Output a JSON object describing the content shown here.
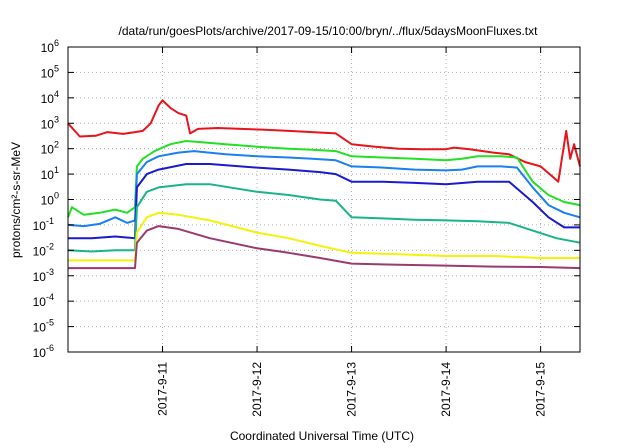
{
  "chart_data": {
    "type": "line",
    "title": "/data/run/goesPlots/archive/2017-09-15/10:00/bryn/../flux/5daysMoonFluxes.txt",
    "xlabel": "Coordinated Universal Time (UTC)",
    "ylabel": "protons/cm²-s-sr-MeV",
    "y_scale": "log",
    "ylim": [
      1e-06,
      1000000.0
    ],
    "y_ticks": [
      {
        "value": 1e-06,
        "label": "10",
        "exp": "-6"
      },
      {
        "value": 1e-05,
        "label": "10",
        "exp": "-5"
      },
      {
        "value": 0.0001,
        "label": "10",
        "exp": "-4"
      },
      {
        "value": 0.001,
        "label": "10",
        "exp": "-3"
      },
      {
        "value": 0.01,
        "label": "10",
        "exp": "-2"
      },
      {
        "value": 0.1,
        "label": "10",
        "exp": "-1"
      },
      {
        "value": 1,
        "label": "10",
        "exp": "0"
      },
      {
        "value": 10,
        "label": "10",
        "exp": "1"
      },
      {
        "value": 100,
        "label": "10",
        "exp": "2"
      },
      {
        "value": 1000,
        "label": "10",
        "exp": "3"
      },
      {
        "value": 10000,
        "label": "10",
        "exp": "4"
      },
      {
        "value": 100000,
        "label": "10",
        "exp": "5"
      },
      {
        "value": 1000000,
        "label": "10",
        "exp": "6"
      }
    ],
    "xlim": [
      "2017-09-10T00:00",
      "2017-09-15T10:00"
    ],
    "x_ticks": [
      "2017-9-11",
      "2017-9-12",
      "2017-9-13",
      "2017-9-14",
      "2017-9-15"
    ],
    "grid": true,
    "series": [
      {
        "color": "#e8141c",
        "points": [
          [
            "2017-09-10T00:00",
            1000
          ],
          [
            "2017-09-10T03:00",
            300
          ],
          [
            "2017-09-10T07:00",
            320
          ],
          [
            "2017-09-10T10:00",
            450
          ],
          [
            "2017-09-10T14:00",
            380
          ],
          [
            "2017-09-10T17:00",
            450
          ],
          [
            "2017-09-10T19:00",
            500
          ],
          [
            "2017-09-10T21:00",
            1000
          ],
          [
            "2017-09-10T23:00",
            5000
          ],
          [
            "2017-09-11T00:00",
            8000
          ],
          [
            "2017-09-11T02:00",
            4000
          ],
          [
            "2017-09-11T04:00",
            2500
          ],
          [
            "2017-09-11T06:00",
            2000
          ],
          [
            "2017-09-11T07:00",
            400
          ],
          [
            "2017-09-11T09:00",
            600
          ],
          [
            "2017-09-11T14:00",
            650
          ],
          [
            "2017-09-11T20:00",
            600
          ],
          [
            "2017-09-12T02:00",
            550
          ],
          [
            "2017-09-12T08:00",
            500
          ],
          [
            "2017-09-12T14:00",
            450
          ],
          [
            "2017-09-12T20:00",
            400
          ],
          [
            "2017-09-13T00:00",
            150
          ],
          [
            "2017-09-13T06:00",
            120
          ],
          [
            "2017-09-13T12:00",
            100
          ],
          [
            "2017-09-13T18:00",
            95
          ],
          [
            "2017-09-14T00:00",
            95
          ],
          [
            "2017-09-14T02:00",
            110
          ],
          [
            "2017-09-14T06:00",
            95
          ],
          [
            "2017-09-14T12:00",
            70
          ],
          [
            "2017-09-14T16:00",
            60
          ],
          [
            "2017-09-14T20:00",
            30
          ],
          [
            "2017-09-15T00:00",
            20
          ],
          [
            "2017-09-15T03:00",
            8
          ],
          [
            "2017-09-15T04:30",
            5
          ],
          [
            "2017-09-15T06:30",
            500
          ],
          [
            "2017-09-15T07:30",
            40
          ],
          [
            "2017-09-15T08:30",
            150
          ],
          [
            "2017-09-15T10:00",
            20
          ]
        ]
      },
      {
        "color": "#22e022",
        "points": [
          [
            "2017-09-10T00:00",
            0.2
          ],
          [
            "2017-09-10T01:00",
            0.5
          ],
          [
            "2017-09-10T04:00",
            0.25
          ],
          [
            "2017-09-10T08:00",
            0.3
          ],
          [
            "2017-09-10T12:00",
            0.4
          ],
          [
            "2017-09-10T15:00",
            0.3
          ],
          [
            "2017-09-10T17:00",
            0.5
          ],
          [
            "2017-09-10T17:30",
            20
          ],
          [
            "2017-09-10T19:00",
            40
          ],
          [
            "2017-09-10T22:00",
            80
          ],
          [
            "2017-09-11T02:00",
            150
          ],
          [
            "2017-09-11T06:00",
            200
          ],
          [
            "2017-09-11T10:00",
            180
          ],
          [
            "2017-09-11T16:00",
            150
          ],
          [
            "2017-09-12T00:00",
            120
          ],
          [
            "2017-09-12T08:00",
            100
          ],
          [
            "2017-09-12T14:00",
            90
          ],
          [
            "2017-09-12T20:00",
            80
          ],
          [
            "2017-09-13T00:00",
            50
          ],
          [
            "2017-09-13T08:00",
            45
          ],
          [
            "2017-09-13T16:00",
            40
          ],
          [
            "2017-09-14T00:00",
            35
          ],
          [
            "2017-09-14T04:00",
            40
          ],
          [
            "2017-09-14T08:00",
            50
          ],
          [
            "2017-09-14T14:00",
            50
          ],
          [
            "2017-09-14T18:00",
            45
          ],
          [
            "2017-09-14T22:00",
            5
          ],
          [
            "2017-09-15T02:00",
            1.5
          ],
          [
            "2017-09-15T06:00",
            0.8
          ],
          [
            "2017-09-15T10:00",
            0.6
          ]
        ]
      },
      {
        "color": "#1a7ff0",
        "points": [
          [
            "2017-09-10T00:00",
            0.1
          ],
          [
            "2017-09-10T04:00",
            0.09
          ],
          [
            "2017-09-10T08:00",
            0.11
          ],
          [
            "2017-09-10T12:00",
            0.2
          ],
          [
            "2017-09-10T15:00",
            0.12
          ],
          [
            "2017-09-10T17:00",
            0.15
          ],
          [
            "2017-09-10T17:30",
            10
          ],
          [
            "2017-09-10T20:00",
            30
          ],
          [
            "2017-09-10T23:00",
            50
          ],
          [
            "2017-09-11T04:00",
            70
          ],
          [
            "2017-09-11T08:00",
            80
          ],
          [
            "2017-09-11T16:00",
            60
          ],
          [
            "2017-09-12T00:00",
            50
          ],
          [
            "2017-09-12T08:00",
            45
          ],
          [
            "2017-09-12T14:00",
            40
          ],
          [
            "2017-09-12T20:00",
            35
          ],
          [
            "2017-09-13T00:00",
            20
          ],
          [
            "2017-09-13T08:00",
            18
          ],
          [
            "2017-09-13T16:00",
            15
          ],
          [
            "2017-09-14T00:00",
            14
          ],
          [
            "2017-09-14T04:00",
            15
          ],
          [
            "2017-09-14T08:00",
            20
          ],
          [
            "2017-09-14T14:00",
            20
          ],
          [
            "2017-09-14T18:00",
            18
          ],
          [
            "2017-09-14T22:00",
            3
          ],
          [
            "2017-09-15T02:00",
            0.6
          ],
          [
            "2017-09-15T06:00",
            0.3
          ],
          [
            "2017-09-15T10:00",
            0.2
          ]
        ]
      },
      {
        "color": "#1a1acf",
        "points": [
          [
            "2017-09-10T00:00",
            0.03
          ],
          [
            "2017-09-10T06:00",
            0.03
          ],
          [
            "2017-09-10T12:00",
            0.035
          ],
          [
            "2017-09-10T17:00",
            0.03
          ],
          [
            "2017-09-10T17:30",
            3
          ],
          [
            "2017-09-10T20:00",
            10
          ],
          [
            "2017-09-10T23:00",
            15
          ],
          [
            "2017-09-11T06:00",
            25
          ],
          [
            "2017-09-11T12:00",
            25
          ],
          [
            "2017-09-12T00:00",
            18
          ],
          [
            "2017-09-12T08:00",
            15
          ],
          [
            "2017-09-12T16:00",
            12
          ],
          [
            "2017-09-12T20:00",
            10
          ],
          [
            "2017-09-13T00:00",
            5
          ],
          [
            "2017-09-13T08:00",
            5
          ],
          [
            "2017-09-13T16:00",
            4.5
          ],
          [
            "2017-09-14T00:00",
            4
          ],
          [
            "2017-09-14T08:00",
            5
          ],
          [
            "2017-09-14T16:00",
            5
          ],
          [
            "2017-09-14T22:00",
            0.8
          ],
          [
            "2017-09-15T02:00",
            0.2
          ],
          [
            "2017-09-15T06:00",
            0.08
          ],
          [
            "2017-09-15T10:00",
            0.08
          ]
        ]
      },
      {
        "color": "#1ab48a",
        "points": [
          [
            "2017-09-10T00:00",
            0.01
          ],
          [
            "2017-09-10T06:00",
            0.009
          ],
          [
            "2017-09-10T12:00",
            0.01
          ],
          [
            "2017-09-10T17:00",
            0.01
          ],
          [
            "2017-09-10T17:30",
            0.5
          ],
          [
            "2017-09-10T20:00",
            2
          ],
          [
            "2017-09-10T23:00",
            3
          ],
          [
            "2017-09-11T06:00",
            4
          ],
          [
            "2017-09-11T12:00",
            4
          ],
          [
            "2017-09-12T00:00",
            2
          ],
          [
            "2017-09-12T08:00",
            1.5
          ],
          [
            "2017-09-12T16:00",
            1
          ],
          [
            "2017-09-12T20:00",
            0.9
          ],
          [
            "2017-09-13T00:00",
            0.2
          ],
          [
            "2017-09-13T08:00",
            0.18
          ],
          [
            "2017-09-13T16:00",
            0.16
          ],
          [
            "2017-09-14T00:00",
            0.15
          ],
          [
            "2017-09-14T08:00",
            0.14
          ],
          [
            "2017-09-14T16:00",
            0.12
          ],
          [
            "2017-09-14T22:00",
            0.06
          ],
          [
            "2017-09-15T04:00",
            0.03
          ],
          [
            "2017-09-15T10:00",
            0.02
          ]
        ]
      },
      {
        "color": "#f2f20a",
        "points": [
          [
            "2017-09-10T00:00",
            0.004
          ],
          [
            "2017-09-10T08:00",
            0.004
          ],
          [
            "2017-09-10T17:00",
            0.004
          ],
          [
            "2017-09-10T17:30",
            0.05
          ],
          [
            "2017-09-10T20:00",
            0.2
          ],
          [
            "2017-09-10T23:00",
            0.3
          ],
          [
            "2017-09-11T04:00",
            0.25
          ],
          [
            "2017-09-11T12:00",
            0.15
          ],
          [
            "2017-09-12T00:00",
            0.05
          ],
          [
            "2017-09-12T08:00",
            0.03
          ],
          [
            "2017-09-12T16:00",
            0.015
          ],
          [
            "2017-09-13T00:00",
            0.008
          ],
          [
            "2017-09-13T12:00",
            0.007
          ],
          [
            "2017-09-14T00:00",
            0.006
          ],
          [
            "2017-09-14T12:00",
            0.006
          ],
          [
            "2017-09-15T00:00",
            0.005
          ],
          [
            "2017-09-15T10:00",
            0.005
          ]
        ]
      },
      {
        "color": "#9a3a6e",
        "points": [
          [
            "2017-09-10T00:00",
            0.002
          ],
          [
            "2017-09-10T08:00",
            0.002
          ],
          [
            "2017-09-10T17:00",
            0.002
          ],
          [
            "2017-09-10T17:30",
            0.02
          ],
          [
            "2017-09-10T20:00",
            0.06
          ],
          [
            "2017-09-10T23:00",
            0.09
          ],
          [
            "2017-09-11T04:00",
            0.07
          ],
          [
            "2017-09-11T12:00",
            0.03
          ],
          [
            "2017-09-12T00:00",
            0.012
          ],
          [
            "2017-09-12T08:00",
            0.008
          ],
          [
            "2017-09-12T16:00",
            0.005
          ],
          [
            "2017-09-13T00:00",
            0.003
          ],
          [
            "2017-09-13T12:00",
            0.0027
          ],
          [
            "2017-09-14T00:00",
            0.0025
          ],
          [
            "2017-09-14T12:00",
            0.0023
          ],
          [
            "2017-09-15T00:00",
            0.0022
          ],
          [
            "2017-09-15T10:00",
            0.002
          ]
        ]
      }
    ]
  }
}
